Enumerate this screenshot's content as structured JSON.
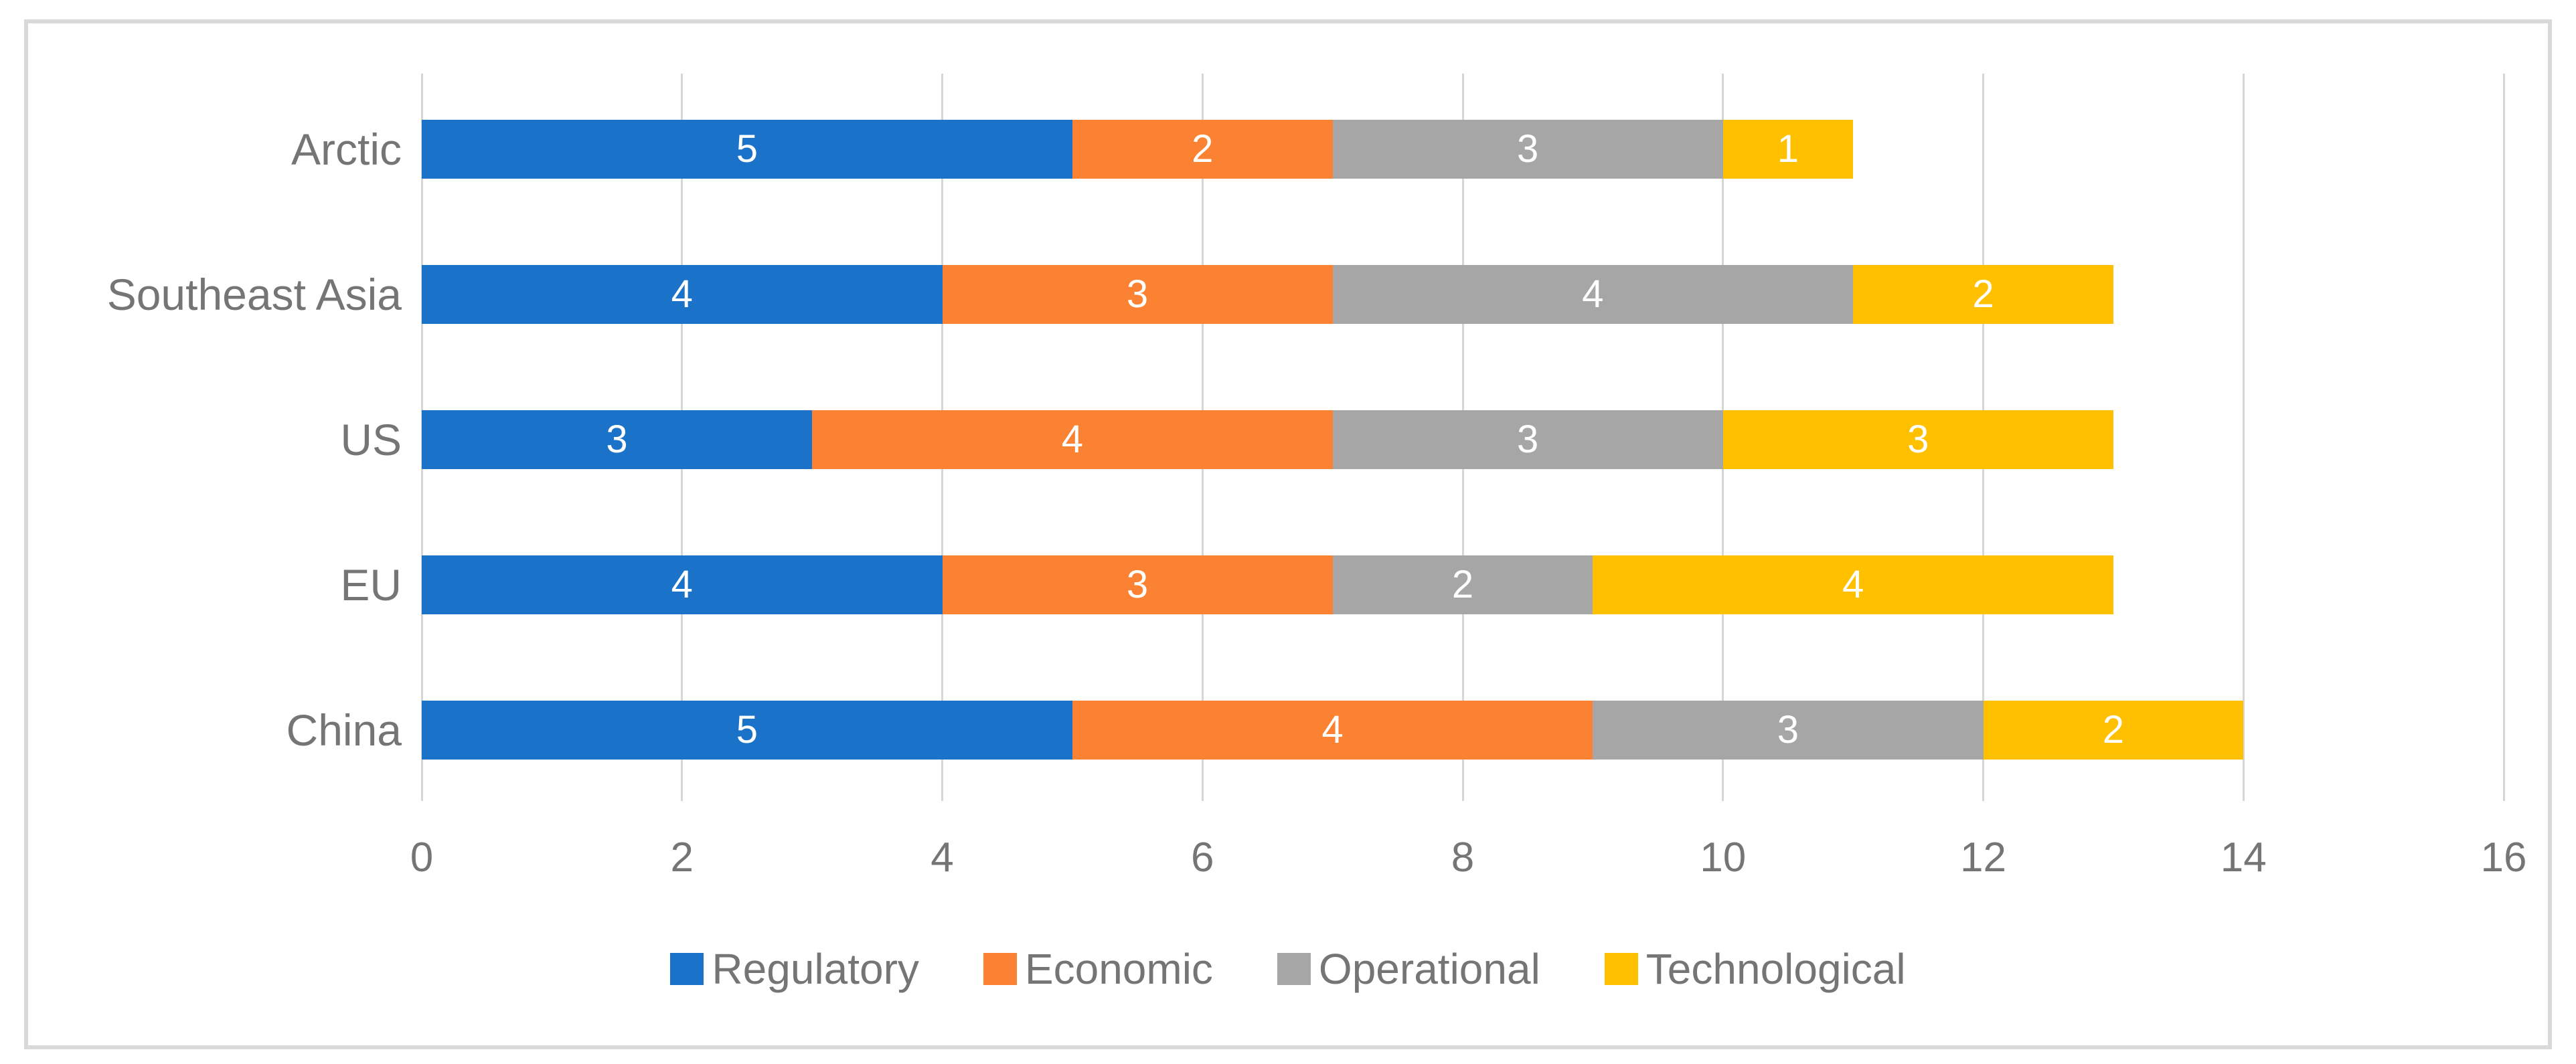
{
  "chart_data": {
    "type": "bar",
    "orientation": "horizontal",
    "stacked": true,
    "title": "",
    "xlabel": "",
    "ylabel": "",
    "categories_top_to_bottom": [
      "Arctic",
      "Southeast Asia",
      "US",
      "EU",
      "China"
    ],
    "series": [
      {
        "name": "Regulatory",
        "color": "#1A73C9",
        "values": [
          5,
          4,
          3,
          4,
          5
        ]
      },
      {
        "name": "Economic",
        "color": "#FA8232",
        "values": [
          2,
          3,
          4,
          3,
          4
        ]
      },
      {
        "name": "Operational",
        "color": "#A6A6A6",
        "values": [
          3,
          4,
          3,
          2,
          3
        ]
      },
      {
        "name": "Technological",
        "color": "#FFC000",
        "values": [
          1,
          2,
          3,
          4,
          2
        ]
      }
    ],
    "totals_top_to_bottom": [
      11,
      13,
      13,
      13,
      14
    ],
    "xlim": [
      0,
      16
    ],
    "x_tick_labels": [
      "0",
      "2",
      "4",
      "6",
      "8",
      "10",
      "12",
      "14",
      "16"
    ],
    "grid": true,
    "gridlines": "vertical",
    "value_labels": "inside-center",
    "legend_position": "bottom-center"
  },
  "colors": {
    "value_label_text": "#FFFFFF",
    "axis_text": "#757575",
    "gridline": "#D6D6D6",
    "frame_border": "#D9D9D9",
    "background": "#FFFFFF"
  }
}
